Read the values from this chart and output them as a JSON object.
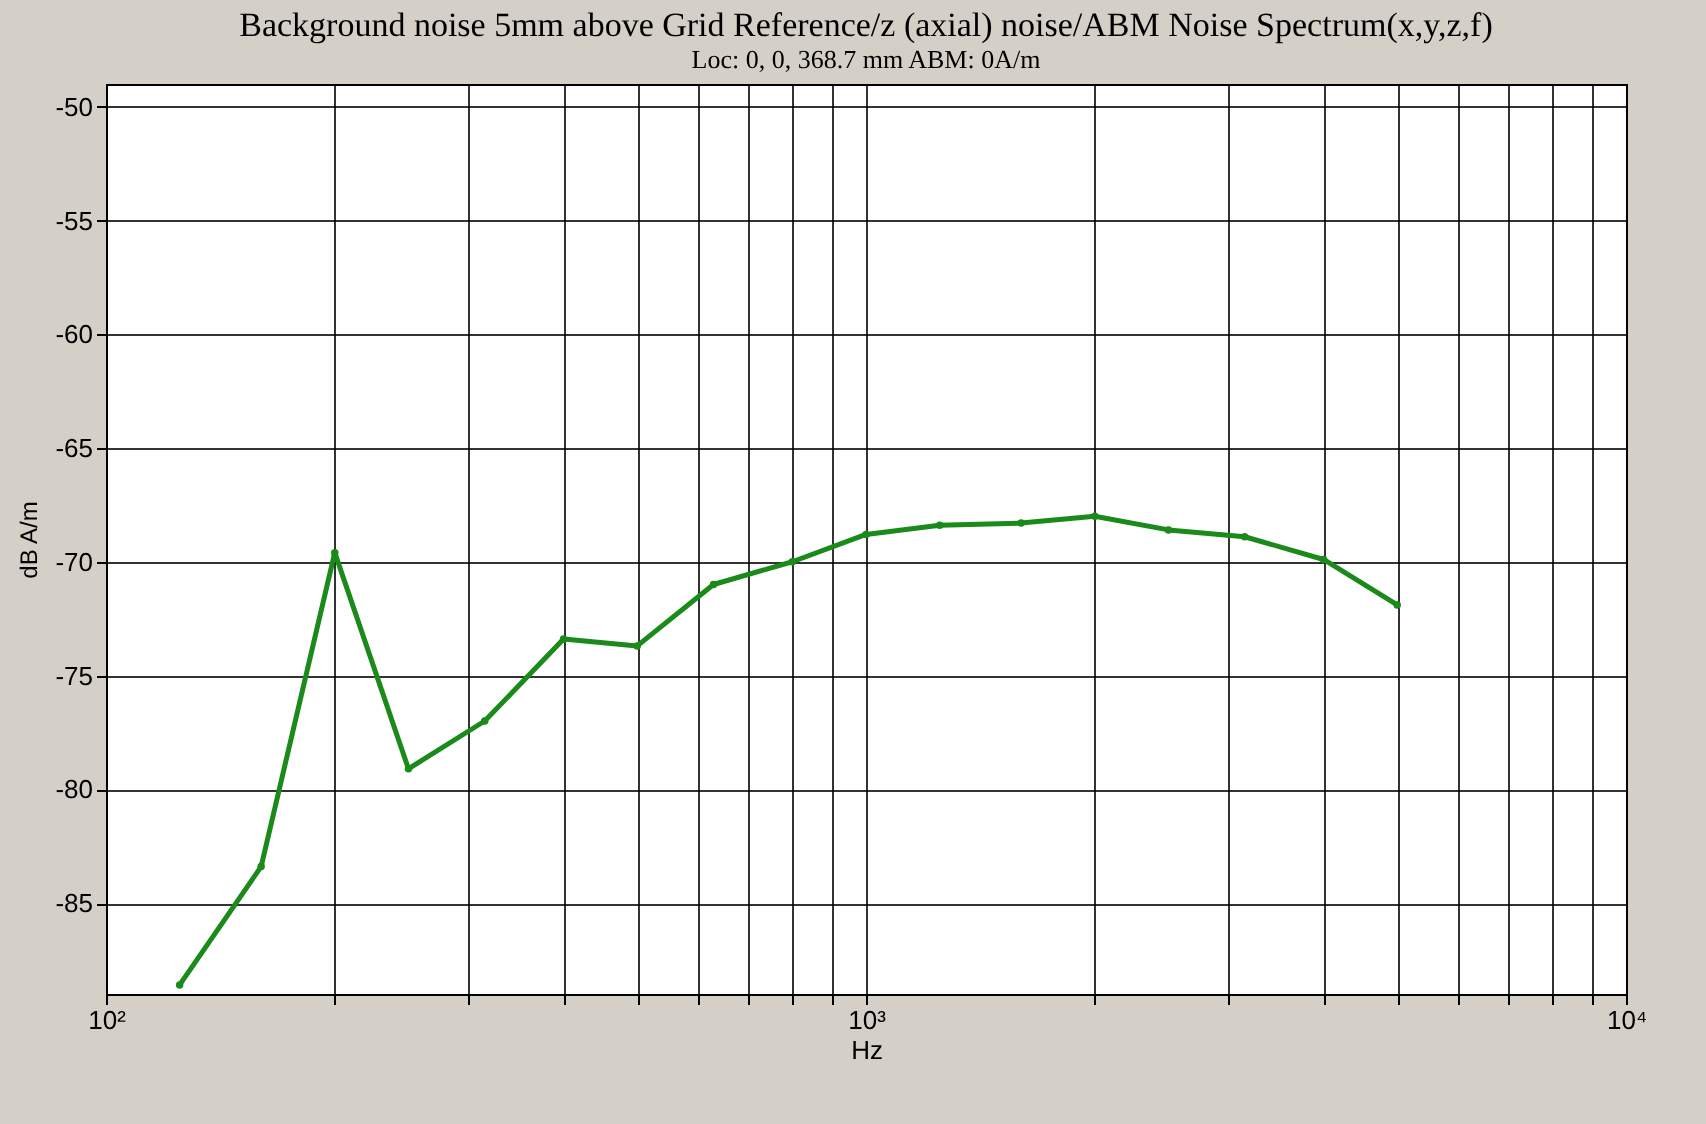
{
  "chart_data": {
    "type": "line",
    "title": "Background noise 5mm above Grid Reference/z (axial) noise/ABM Noise Spectrum(x,y,z,f)",
    "subtitle": "Loc: 0, 0, 368.7 mm ABM: 0A/m",
    "xlabel": "Hz",
    "ylabel": "dB A/m",
    "x": [
      125,
      160,
      200,
      250,
      315,
      400,
      500,
      630,
      800,
      1000,
      1250,
      1600,
      2000,
      2500,
      3150,
      4000,
      5000
    ],
    "series": [
      {
        "color": "#1a8a1a",
        "values": [
          -88.6,
          -83.4,
          -69.6,
          -79.1,
          -77.0,
          -73.4,
          -73.7,
          -71.0,
          -70.0,
          -68.8,
          -68.4,
          -68.3,
          -68.0,
          -68.6,
          -68.9,
          -69.9,
          -71.9
        ]
      }
    ],
    "log": "x",
    "xlim": [
      100,
      10000
    ],
    "xticks": [
      {
        "value": 100,
        "label": "10²"
      },
      {
        "value": 200,
        "label": null
      },
      {
        "value": 300,
        "label": null
      },
      {
        "value": 400,
        "label": null
      },
      {
        "value": 500,
        "label": null
      },
      {
        "value": 600,
        "label": null
      },
      {
        "value": 700,
        "label": null
      },
      {
        "value": 800,
        "label": null
      },
      {
        "value": 900,
        "label": null
      },
      {
        "value": 1000,
        "label": "10³"
      },
      {
        "value": 2000,
        "label": null
      },
      {
        "value": 3000,
        "label": null
      },
      {
        "value": 4000,
        "label": null
      },
      {
        "value": 5000,
        "label": null
      },
      {
        "value": 6000,
        "label": null
      },
      {
        "value": 7000,
        "label": null
      },
      {
        "value": 8000,
        "label": null
      },
      {
        "value": 9000,
        "label": null
      },
      {
        "value": 10000,
        "label": "10⁴"
      }
    ],
    "ylim": [
      -89,
      -49
    ],
    "yticks": [
      -85,
      -80,
      -75,
      -70,
      -65,
      -60,
      -55,
      -50
    ],
    "grid": true,
    "marker": "circle",
    "line_style": "solid"
  }
}
